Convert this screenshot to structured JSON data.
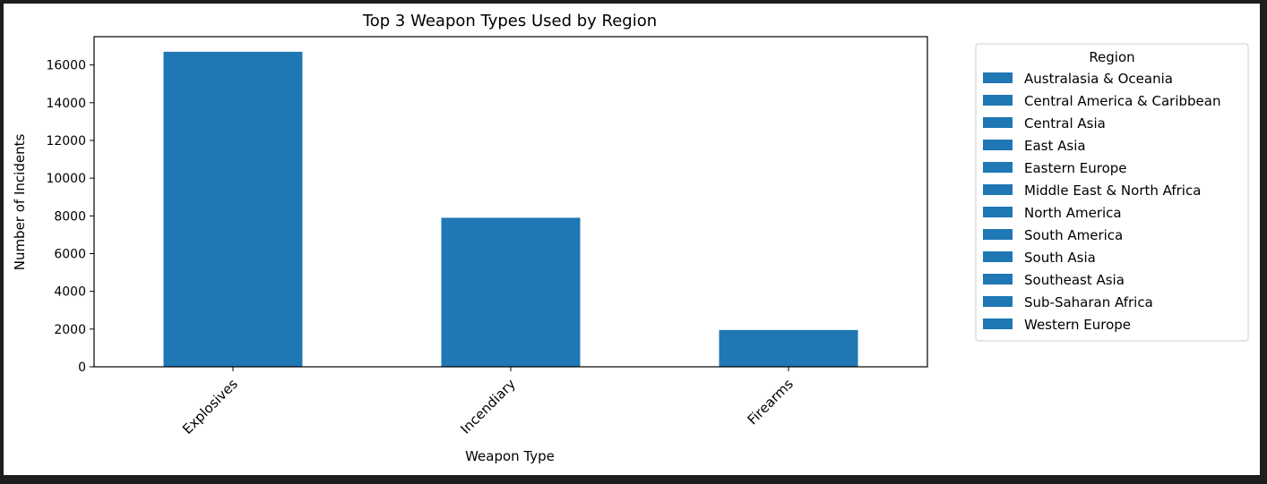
{
  "chart_data": {
    "type": "bar",
    "title": "Top 3 Weapon Types Used by Region",
    "xlabel": "Weapon Type",
    "ylabel": "Number of Incidents",
    "categories": [
      "Explosives",
      "Incendiary",
      "Firearms"
    ],
    "series": [
      {
        "name": "Australasia & Oceania",
        "values": [
          16700,
          7900,
          1950
        ]
      },
      {
        "name": "Central America & Caribbean",
        "values": [
          0,
          0,
          0
        ]
      },
      {
        "name": "Central Asia",
        "values": [
          0,
          0,
          0
        ]
      },
      {
        "name": "East Asia",
        "values": [
          0,
          0,
          0
        ]
      },
      {
        "name": "Eastern Europe",
        "values": [
          0,
          0,
          0
        ]
      },
      {
        "name": "Middle East & North Africa",
        "values": [
          0,
          0,
          0
        ]
      },
      {
        "name": "North America",
        "values": [
          0,
          0,
          0
        ]
      },
      {
        "name": "South America",
        "values": [
          0,
          0,
          0
        ]
      },
      {
        "name": "South Asia",
        "values": [
          0,
          0,
          0
        ]
      },
      {
        "name": "Southeast Asia",
        "values": [
          0,
          0,
          0
        ]
      },
      {
        "name": "Sub-Saharan Africa",
        "values": [
          0,
          0,
          0
        ]
      },
      {
        "name": "Western Europe",
        "values": [
          0,
          0,
          0
        ]
      }
    ],
    "ylim": [
      0,
      17500
    ],
    "yticks": [
      0,
      2000,
      4000,
      6000,
      8000,
      10000,
      12000,
      14000,
      16000
    ],
    "xtick_rotation": 45,
    "grid": false,
    "legend": {
      "title": "Region",
      "placement": "outside-right-top"
    },
    "bar_color": "#1f77b4"
  }
}
